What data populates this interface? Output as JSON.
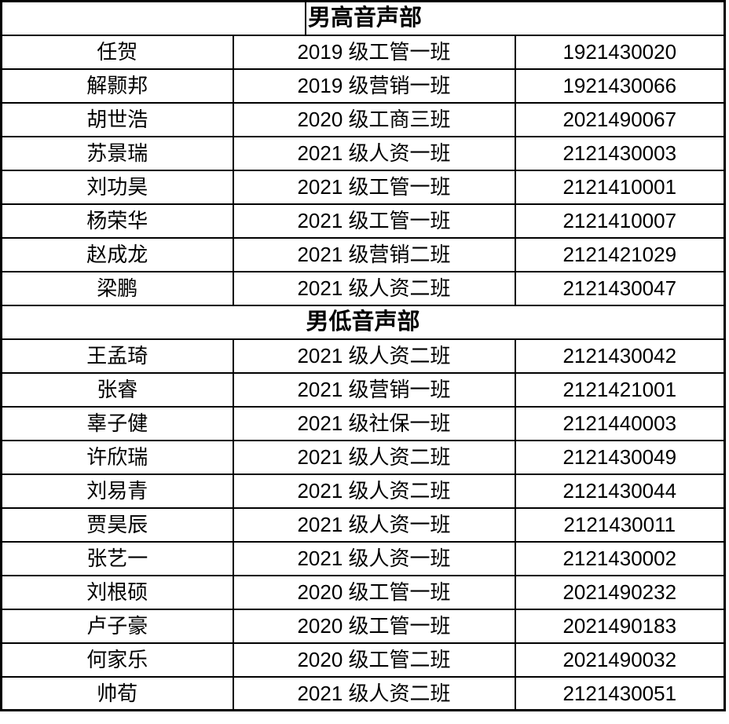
{
  "document": {
    "type": "choir-roster-table",
    "colors": {
      "border": "#000000",
      "text": "#000000",
      "background": "#ffffff"
    },
    "columns": [
      "name",
      "class_name",
      "student_id"
    ],
    "sections": [
      {
        "title": "男高音声部",
        "rows": [
          {
            "name": "任贺",
            "class_name": "2019 级工管一班",
            "student_id": "1921430020"
          },
          {
            "name": "解颢邦",
            "class_name": "2019 级营销一班",
            "student_id": "1921430066"
          },
          {
            "name": "胡世浩",
            "class_name": "2020 级工商三班",
            "student_id": "2021490067"
          },
          {
            "name": "苏景瑞",
            "class_name": "2021 级人资一班",
            "student_id": "2121430003"
          },
          {
            "name": "刘功昊",
            "class_name": "2021 级工管一班",
            "student_id": "2121410001"
          },
          {
            "name": "杨荣华",
            "class_name": "2021 级工管一班",
            "student_id": "2121410007"
          },
          {
            "name": "赵成龙",
            "class_name": "2021 级营销二班",
            "student_id": "2121421029"
          },
          {
            "name": "梁鹏",
            "class_name": "2021 级人资二班",
            "student_id": "2121430047"
          }
        ]
      },
      {
        "title": "男低音声部",
        "rows": [
          {
            "name": "王孟琦",
            "class_name": "2021 级人资二班",
            "student_id": "2121430042"
          },
          {
            "name": "张睿",
            "class_name": "2021 级营销一班",
            "student_id": "2121421001"
          },
          {
            "name": "辜子健",
            "class_name": "2021 级社保一班",
            "student_id": "2121440003"
          },
          {
            "name": "许欣瑞",
            "class_name": "2021 级人资二班",
            "student_id": "2121430049"
          },
          {
            "name": "刘易青",
            "class_name": "2021 级人资二班",
            "student_id": "2121430044"
          },
          {
            "name": "贾昊辰",
            "class_name": "2021 级人资一班",
            "student_id": "2121430011"
          },
          {
            "name": "张艺一",
            "class_name": "2021 级人资一班",
            "student_id": "2121430002"
          },
          {
            "name": "刘根硕",
            "class_name": "2020 级工管一班",
            "student_id": "2021490232"
          },
          {
            "name": "卢子豪",
            "class_name": "2020 级工管一班",
            "student_id": "2021490183"
          },
          {
            "name": "何家乐",
            "class_name": "2020 级工管二班",
            "student_id": "2021490032"
          },
          {
            "name": "帅荀",
            "class_name": "2021 级人资二班",
            "student_id": "2121430051"
          }
        ]
      }
    ]
  }
}
